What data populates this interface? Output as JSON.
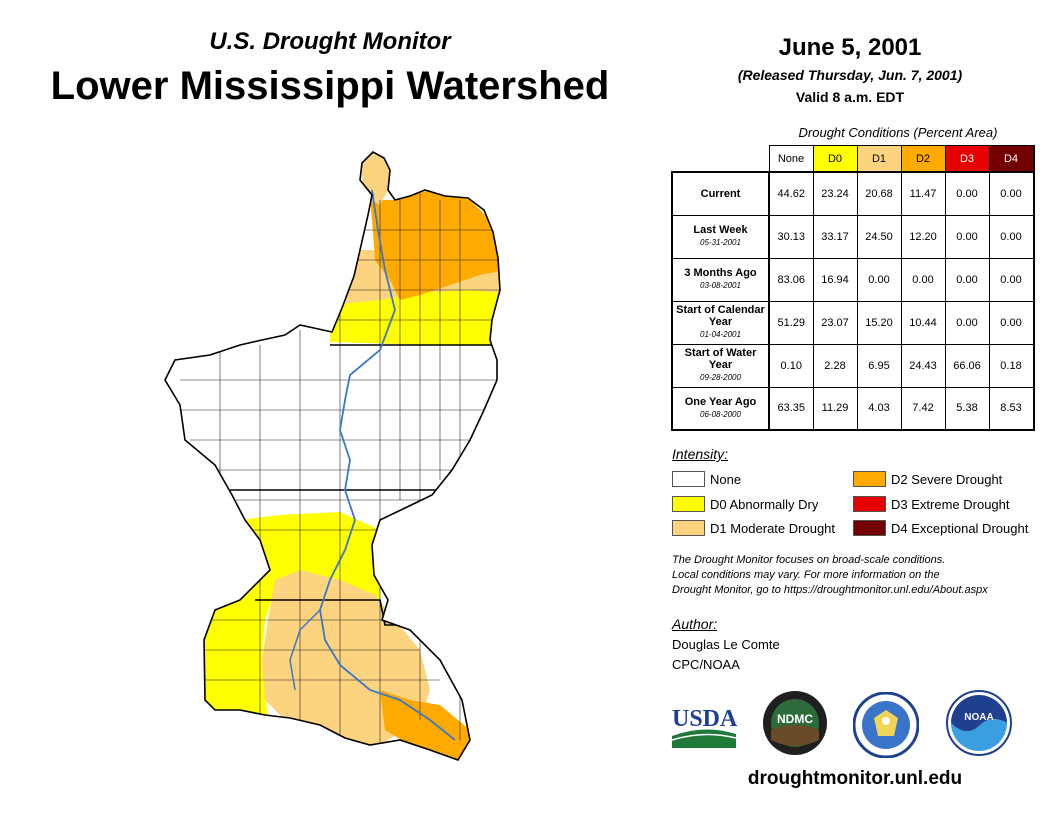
{
  "header": {
    "subtitle": "U.S. Drought Monitor",
    "title": "Lower Mississippi Watershed",
    "date": "June 5, 2001",
    "released": "(Released Thursday, Jun. 7, 2001)",
    "valid": "Valid 8 a.m. EDT"
  },
  "table": {
    "caption": "Drought Conditions (Percent Area)",
    "columns": [
      "None",
      "D0",
      "D1",
      "D2",
      "D3",
      "D4"
    ],
    "rows": [
      {
        "label": "Current",
        "date": "",
        "values": [
          "44.62",
          "23.24",
          "20.68",
          "11.47",
          "0.00",
          "0.00"
        ]
      },
      {
        "label": "Last Week",
        "date": "05-31-2001",
        "values": [
          "30.13",
          "33.17",
          "24.50",
          "12.20",
          "0.00",
          "0.00"
        ]
      },
      {
        "label": "3 Months Ago",
        "date": "03-08-2001",
        "values": [
          "83.06",
          "16.94",
          "0.00",
          "0.00",
          "0.00",
          "0.00"
        ]
      },
      {
        "label": "Start of Calendar Year",
        "date": "01-04-2001",
        "values": [
          "51.29",
          "23.07",
          "15.20",
          "10.44",
          "0.00",
          "0.00"
        ]
      },
      {
        "label": "Start of Water Year",
        "date": "09-28-2000",
        "values": [
          "0.10",
          "2.28",
          "6.95",
          "24.43",
          "66.06",
          "0.18"
        ]
      },
      {
        "label": "One Year Ago",
        "date": "06-08-2000",
        "values": [
          "63.35",
          "11.29",
          "4.03",
          "7.42",
          "5.38",
          "8.53"
        ]
      }
    ]
  },
  "legend": {
    "label": "Intensity:",
    "items": [
      {
        "key": "none",
        "label": "None",
        "color": "#ffffff"
      },
      {
        "key": "d0",
        "label": "D0 Abnormally Dry",
        "color": "#ffff00"
      },
      {
        "key": "d1",
        "label": "D1 Moderate Drought",
        "color": "#fcd37f"
      },
      {
        "key": "d2",
        "label": "D2 Severe Drought",
        "color": "#ffaa00"
      },
      {
        "key": "d3",
        "label": "D3 Extreme Drought",
        "color": "#e60000"
      },
      {
        "key": "d4",
        "label": "D4 Exceptional Drought",
        "color": "#730000"
      }
    ]
  },
  "note": {
    "line1": "The Drought Monitor focuses on broad-scale conditions.",
    "line2": "Local conditions may vary. For more information on the",
    "line3": "Drought Monitor, go to https://droughtmonitor.unl.edu/About.aspx"
  },
  "author": {
    "label": "Author:",
    "name": "Douglas Le Comte",
    "org": "CPC/NOAA"
  },
  "logos": {
    "usda": "USDA",
    "ndmc": "NDMC",
    "noaa": "NOAA"
  },
  "footer": {
    "url": "droughtmonitor.unl.edu"
  },
  "colors": {
    "none": "#ffffff",
    "d0": "#ffff00",
    "d1": "#fcd37f",
    "d2": "#ffaa00",
    "d3": "#e60000",
    "d4": "#730000",
    "river": "#3a78c8"
  }
}
